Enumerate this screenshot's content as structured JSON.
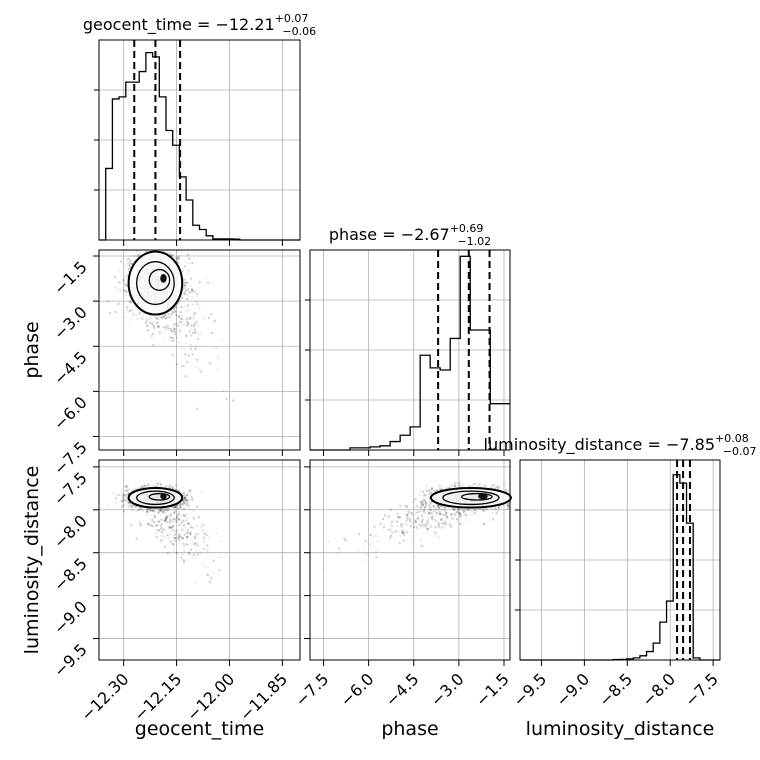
{
  "chart_data": {
    "type": "corner",
    "parameters": [
      {
        "name": "geocent_time",
        "axis_label": "geocent_time",
        "title": {
          "prefix": "geocent_time = ",
          "median": "−12.21",
          "plus": "+0.07",
          "minus": "−0.06"
        },
        "quantiles": [
          -12.27,
          -12.21,
          -12.14
        ],
        "ticks": [
          -12.3,
          -12.15,
          -12.0,
          -11.85
        ],
        "tick_labels": [
          "−12.30",
          "−12.15",
          "−12.00",
          "−11.85"
        ],
        "range": [
          -12.37,
          -11.8
        ],
        "hist": {
          "edges_start": -12.37,
          "bin_width": 0.019,
          "counts": [
            0,
            0.34,
            0.67,
            0.68,
            0.75,
            0.75,
            0.8,
            0.89,
            0.87,
            0.68,
            0.52,
            0.45,
            0.3,
            0.19,
            0.07,
            0.05,
            0.02,
            0.005,
            0.005,
            0.005,
            0.004,
            0,
            0,
            0,
            0,
            0,
            0,
            0,
            0,
            0
          ]
        }
      },
      {
        "name": "phase",
        "axis_label": "phase",
        "title": {
          "prefix": "phase = ",
          "median": "−2.67",
          "plus": "+0.69",
          "minus": "−1.02"
        },
        "quantiles": [
          -3.69,
          -2.67,
          -1.98
        ],
        "ticks": [
          -7.5,
          -6.0,
          -4.5,
          -3.0,
          -1.5
        ],
        "tick_labels": [
          "−7.5",
          "−6.0",
          "−4.5",
          "−3.0",
          "−1.5"
        ],
        "range": [
          -7.95,
          -1.3
        ],
        "hist": {
          "edges_start": -7.95,
          "bin_width": 0.333,
          "counts": [
            0,
            0,
            0,
            0,
            0.01,
            0.01,
            0.015,
            0.02,
            0.04,
            0.07,
            0.11,
            0.45,
            0.39,
            0.38,
            0.53,
            0.92,
            0.57,
            0.57,
            0.22,
            0.22
          ]
        }
      },
      {
        "name": "luminosity_distance",
        "axis_label": "luminosity_distance",
        "title": {
          "prefix": "luminosity_distance = ",
          "median": "−7.85",
          "plus": "+0.08",
          "minus": "−0.07"
        },
        "quantiles": [
          -7.92,
          -7.85,
          -7.77
        ],
        "ticks": [
          -9.5,
          -9.0,
          -8.5,
          -8.0,
          -7.5
        ],
        "tick_labels": [
          "−9.5",
          "−9.0",
          "−8.5",
          "−8.0",
          "−7.5"
        ],
        "range": [
          -9.75,
          -7.42
        ],
        "hist": {
          "edges_start": -9.75,
          "bin_width": 0.0776,
          "counts": [
            0,
            0,
            0,
            0,
            0,
            0,
            0,
            0,
            0,
            0,
            0,
            0,
            0,
            0,
            0.002,
            0.003,
            0.005,
            0.01,
            0.02,
            0.04,
            0.08,
            0.18,
            0.28,
            0.88,
            0.84,
            0.65,
            0.01,
            0,
            0,
            0
          ]
        }
      }
    ],
    "scatter_style": "grey points with filled density contours",
    "grid": true
  }
}
